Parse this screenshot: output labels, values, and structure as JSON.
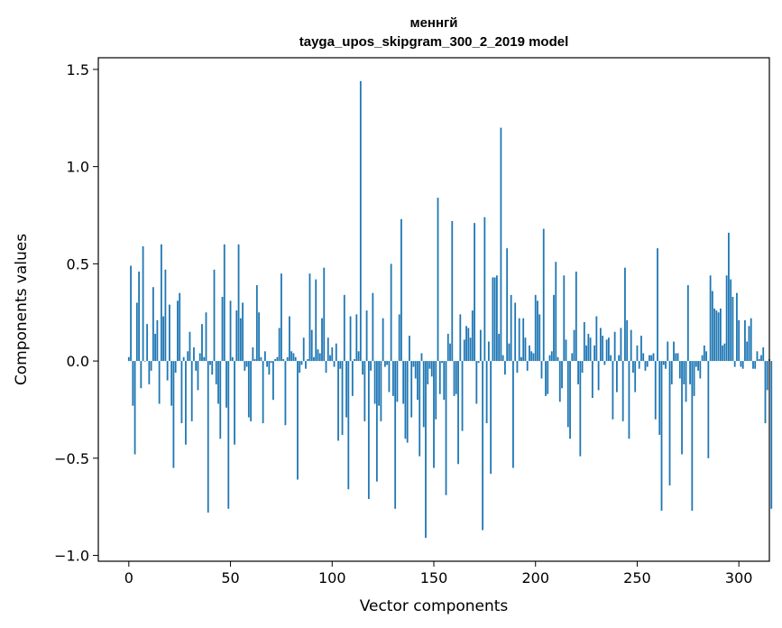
{
  "chart_data": {
    "type": "bar",
    "title": "меннгй",
    "subtitle": "tayga_upos_skipgram_300_2_2019 model",
    "xlabel": "Vector components",
    "ylabel": "Components values",
    "xlim": [
      -15,
      315
    ],
    "ylim": [
      -1.03,
      1.56
    ],
    "x_ticks": [
      0,
      50,
      100,
      150,
      200,
      250,
      300
    ],
    "x_tick_labels": [
      "0",
      "50",
      "100",
      "150",
      "200",
      "250",
      "300"
    ],
    "y_ticks": [
      -1.0,
      -0.5,
      0.0,
      0.5,
      1.0,
      1.5
    ],
    "y_tick_labels": [
      "−1.0",
      "−0.5",
      "0.0",
      "0.5",
      "1.0",
      "1.5"
    ],
    "bar_color": "#1f77b4",
    "values": [
      0.02,
      0.49,
      -0.23,
      -0.48,
      0.3,
      0.46,
      -0.14,
      0.59,
      0.0,
      0.19,
      -0.12,
      -0.05,
      0.38,
      0.14,
      0.21,
      -0.22,
      0.6,
      0.23,
      0.47,
      -0.1,
      0.29,
      -0.23,
      -0.55,
      -0.06,
      0.31,
      0.35,
      -0.32,
      0.02,
      -0.43,
      0.05,
      0.15,
      -0.31,
      0.07,
      -0.05,
      -0.15,
      0.04,
      0.19,
      0.02,
      0.25,
      -0.78,
      -0.02,
      -0.07,
      0.47,
      -0.12,
      -0.22,
      -0.4,
      0.33,
      0.6,
      -0.24,
      -0.76,
      0.31,
      0.02,
      -0.43,
      0.26,
      0.6,
      0.22,
      0.3,
      -0.05,
      -0.03,
      -0.29,
      -0.31,
      0.07,
      0.01,
      0.39,
      0.25,
      0.02,
      -0.32,
      0.05,
      -0.03,
      -0.07,
      -0.01,
      -0.2,
      0.01,
      0.02,
      0.17,
      0.45,
      0.01,
      -0.33,
      0.02,
      0.23,
      0.05,
      0.04,
      0.02,
      -0.61,
      -0.06,
      -0.02,
      0.12,
      -0.04,
      0.01,
      0.45,
      0.16,
      0.02,
      0.42,
      0.06,
      0.04,
      0.22,
      0.48,
      -0.06,
      0.12,
      0.03,
      0.07,
      -0.03,
      0.09,
      -0.41,
      -0.04,
      -0.38,
      0.34,
      -0.29,
      -0.66,
      0.23,
      -0.18,
      0.01,
      0.24,
      0.05,
      1.44,
      -0.07,
      -0.31,
      0.26,
      -0.71,
      -0.05,
      0.35,
      -0.22,
      -0.62,
      -0.23,
      -0.31,
      0.22,
      -0.03,
      -0.02,
      -0.16,
      0.5,
      -0.18,
      -0.76,
      -0.21,
      0.24,
      0.73,
      -0.22,
      -0.4,
      -0.42,
      0.13,
      -0.29,
      -0.03,
      -0.09,
      -0.2,
      -0.49,
      0.04,
      -0.34,
      -0.91,
      -0.12,
      -0.04,
      -0.08,
      -0.55,
      -0.3,
      0.84,
      -0.17,
      -0.01,
      -0.2,
      -0.69,
      0.14,
      0.09,
      0.72,
      -0.18,
      -0.17,
      -0.53,
      0.24,
      -0.36,
      0.11,
      0.18,
      0.17,
      0.12,
      0.26,
      0.71,
      -0.22,
      -0.01,
      0.16,
      -0.87,
      0.74,
      -0.32,
      0.1,
      -0.58,
      0.43,
      0.43,
      0.44,
      0.14,
      1.2,
      0.03,
      -0.07,
      0.58,
      0.09,
      0.34,
      -0.55,
      0.3,
      -0.06,
      0.22,
      0.02,
      0.22,
      0.12,
      -0.05,
      0.08,
      0.05,
      0.04,
      0.34,
      0.31,
      0.24,
      -0.09,
      0.68,
      -0.18,
      -0.17,
      0.03,
      0.05,
      0.34,
      0.51,
      0.02,
      -0.21,
      -0.14,
      0.44,
      0.11,
      -0.34,
      -0.4,
      0.04,
      0.16,
      0.46,
      -0.12,
      -0.49,
      -0.06,
      0.2,
      0.08,
      0.14,
      0.12,
      -0.19,
      0.08,
      0.23,
      -0.15,
      0.17,
      0.13,
      -0.02,
      0.11,
      0.12,
      0.03,
      -0.3,
      0.15,
      -0.16,
      0.03,
      0.17,
      -0.31,
      0.48,
      0.21,
      -0.4,
      0.16,
      -0.06,
      -0.16,
      0.08,
      -0.04,
      0.13,
      0.04,
      -0.05,
      -0.03,
      0.03,
      0.03,
      0.04,
      -0.3,
      0.58,
      -0.38,
      -0.77,
      -0.02,
      -0.04,
      0.1,
      -0.64,
      -0.12,
      0.1,
      0.04,
      0.04,
      -0.09,
      -0.48,
      -0.12,
      -0.21,
      0.39,
      -0.12,
      -0.77,
      -0.18,
      -0.03,
      -0.05,
      -0.09,
      0.03,
      0.08,
      0.05,
      -0.5,
      0.44,
      0.36,
      0.27,
      0.26,
      0.25,
      0.27,
      0.08,
      0.09,
      0.44,
      0.66,
      0.42,
      0.33,
      -0.03,
      0.35,
      0.21,
      -0.03,
      -0.04,
      0.21,
      0.1,
      0.18,
      0.22,
      -0.04,
      -0.04,
      0.05,
      0.01,
      0.03,
      0.07,
      -0.32,
      -0.15,
      0.01,
      -0.76
    ]
  }
}
